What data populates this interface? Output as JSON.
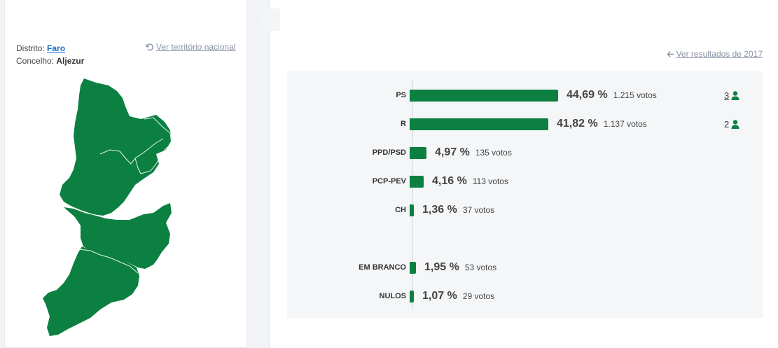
{
  "location": {
    "district_label": "Distrito:",
    "district_value": "Faro",
    "council_label": "Concelho:",
    "council_value": "Aljezur",
    "national_link": "Ver território nacional"
  },
  "map": {
    "fill_color": "#0b8041"
  },
  "results": {
    "previous_link": "Ver resultados de 2017",
    "bar_color": "#0b8041",
    "rows": [
      {
        "party": "PS",
        "pct": "44,69 %",
        "pct_value": 44.69,
        "votes": "1.215 votos",
        "seats": "3",
        "seats_link": true
      },
      {
        "party": "R",
        "pct": "41,82 %",
        "pct_value": 41.82,
        "votes": "1.137 votos",
        "seats": "2",
        "seats_link": false
      },
      {
        "party": "PPD/PSD",
        "pct": "4,97 %",
        "pct_value": 4.97,
        "votes": "135 votos"
      },
      {
        "party": "PCP-PEV",
        "pct": "4,16 %",
        "pct_value": 4.16,
        "votes": "113 votos"
      },
      {
        "party": "CH",
        "pct": "1,36 %",
        "pct_value": 1.36,
        "votes": "37 votos"
      },
      {
        "party": "EM BRANCO",
        "pct": "1,95 %",
        "pct_value": 1.95,
        "votes": "53 votos"
      },
      {
        "party": "NULOS",
        "pct": "1,07 %",
        "pct_value": 1.07,
        "votes": "29 votos"
      }
    ]
  }
}
